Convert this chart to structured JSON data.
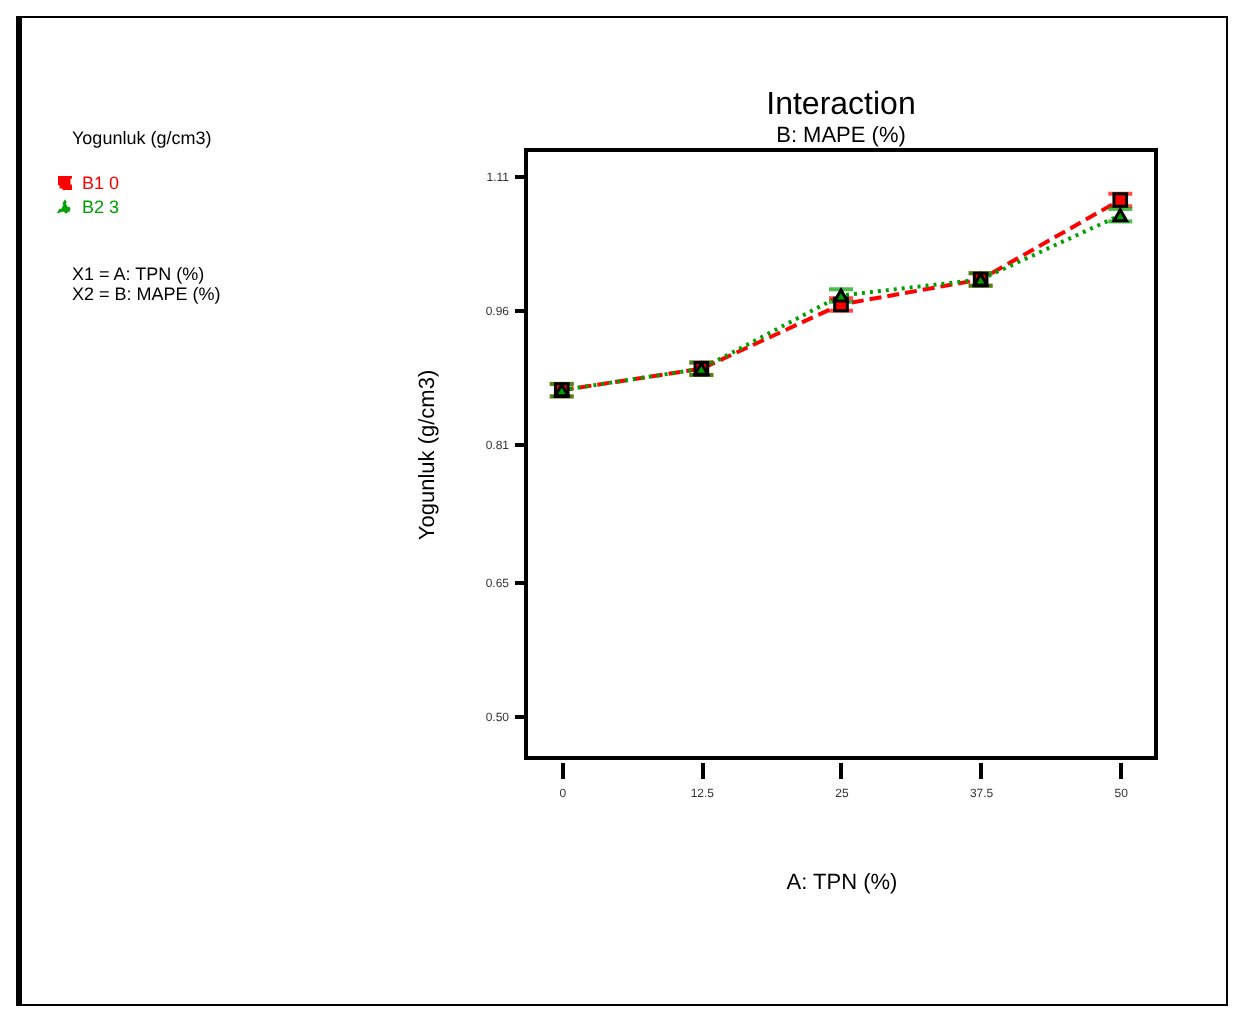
{
  "chart_data": {
    "type": "line",
    "title": "Interaction",
    "subtitle": "B: MAPE (%)",
    "xlabel": "A: TPN (%)",
    "ylabel": "Yogunluk (g/cm3)",
    "annotations": [
      "Yogunluk (g/cm3)",
      "X1 = A: TPN (%)",
      "X2 = B: MAPE (%)"
    ],
    "x": [
      0,
      12.5,
      25,
      37.5,
      50
    ],
    "series": [
      {
        "name": "B1 0",
        "color": "#ff0000",
        "marker": "square",
        "line_style": "dashed",
        "values": [
          0.87,
          0.894,
          0.966,
          0.994,
          1.083
        ],
        "errors": [
          0.007,
          0.007,
          0.007,
          0.007,
          0.007
        ]
      },
      {
        "name": "B2 3",
        "color": "#00a000",
        "marker": "triangle",
        "line_style": "dotted",
        "values": [
          0.87,
          0.894,
          0.976,
          0.994,
          1.066
        ],
        "errors": [
          0.007,
          0.007,
          0.007,
          0.007,
          0.007
        ]
      }
    ],
    "xlim": [
      -3.2,
      53.2
    ],
    "xticks": [
      0,
      12.5,
      25,
      37.5,
      50
    ],
    "ylim": [
      0.458,
      1.139
    ],
    "yticks": [
      {
        "value": 0.505,
        "label": "0.50"
      },
      {
        "value": 0.655,
        "label": "0.65"
      },
      {
        "value": 0.81,
        "label": "0.81"
      },
      {
        "value": 0.96,
        "label": "0.96"
      },
      {
        "value": 1.11,
        "label": "1.11"
      }
    ],
    "grid": false,
    "legend": "top left"
  }
}
